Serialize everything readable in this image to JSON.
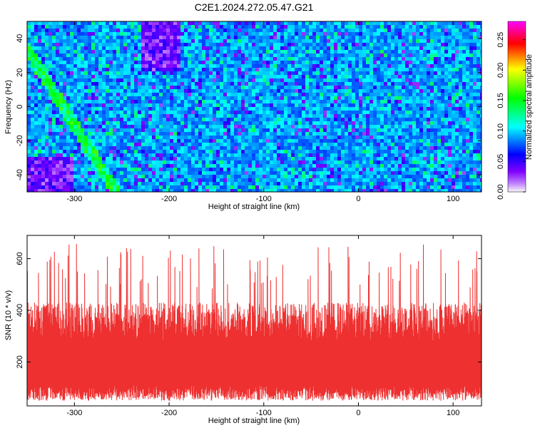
{
  "title": "C2E1.2024.272.05.47.G21",
  "chart_data": [
    {
      "type": "heatmap",
      "xlabel": "Height of straight line (km)",
      "ylabel": "Frequency (Hz)",
      "xlim": [
        -350,
        130
      ],
      "ylim": [
        -50,
        50
      ],
      "xticks": [
        -300,
        -200,
        -100,
        0,
        100
      ],
      "yticks": [
        -40,
        -20,
        0,
        20,
        40
      ],
      "colorbar": {
        "label": "Normalized spectral amplitude",
        "range": [
          0,
          0.28
        ],
        "ticks": [
          "0.00",
          "0.05",
          "0.10",
          "0.15",
          "0.20",
          "0.25"
        ],
        "colors": [
          "#f8f8f8",
          "#8000ff",
          "#0000ff",
          "#00ffff",
          "#00ff00",
          "#ffff00",
          "#ff0000",
          "#ff00ff"
        ]
      }
    },
    {
      "type": "area",
      "xlabel": "Height of straight line (km)",
      "ylabel": "SNR (10 * v/v)",
      "xlim": [
        -350,
        130
      ],
      "ylim": [
        30,
        690
      ],
      "xticks": [
        -300,
        -200,
        -100,
        0,
        100
      ],
      "yticks": [
        200,
        400,
        600
      ],
      "color": "#ee3030"
    }
  ]
}
